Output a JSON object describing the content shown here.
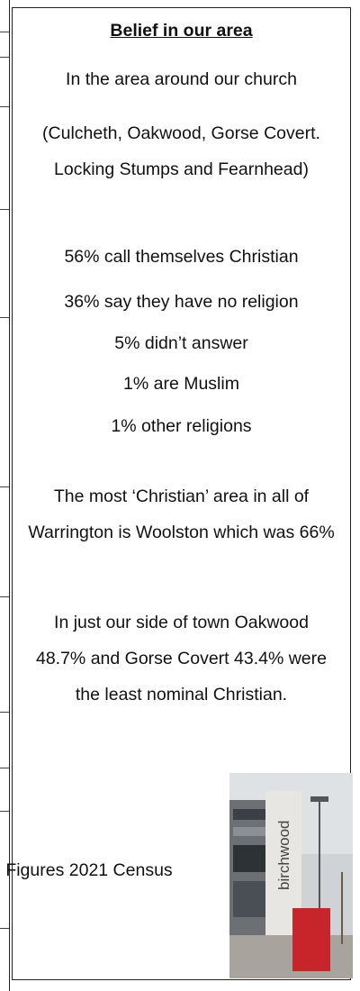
{
  "title": "Belief in our area",
  "paragraphs": [
    "In the area around our church",
    "(Culcheth, Oakwood, Gorse Covert. Locking Stumps and Fearnhead)",
    "56% call themselves Christian",
    "36% say they have no religion",
    "5% didn’t answer",
    "1% are Muslim",
    "1% other religions",
    "The most ‘Christian’ area in all of Warrington is Woolston which was 66%",
    "In just our side of town Oakwood  48.7% and Gorse Covert 43.4% were the least nominal Christian."
  ],
  "footnote": "Figures 2021 Census",
  "photo": {
    "sign_text": "birchwood"
  }
}
